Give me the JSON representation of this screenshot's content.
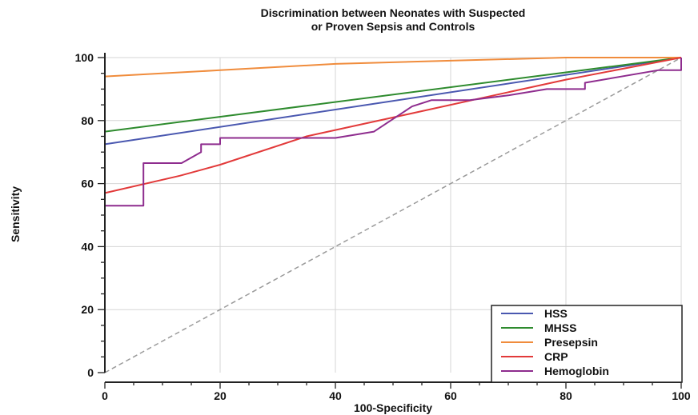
{
  "chart_data": {
    "type": "line",
    "title": "Discrimination between Neonates with Suspected",
    "subtitle": "or Proven Sepsis and Controls",
    "xlabel": "100-Specificity",
    "ylabel": "Sensitivity",
    "xlim": [
      0,
      100
    ],
    "ylim": [
      0,
      100
    ],
    "xticks": [
      "0",
      "20",
      "40",
      "60",
      "80",
      "100"
    ],
    "yticks": [
      "0",
      "20",
      "40",
      "60",
      "80",
      "100"
    ],
    "grid": true,
    "legend": "bottom-right",
    "reference_line": {
      "color": "#9a9a9a",
      "style": "dashed",
      "points": [
        [
          0,
          0
        ],
        [
          100,
          100
        ]
      ]
    },
    "series": [
      {
        "name": "HSS",
        "color": "#4a58b0",
        "points": [
          [
            0,
            0
          ],
          [
            0,
            72.5
          ],
          [
            100,
            100
          ]
        ]
      },
      {
        "name": "MHSS",
        "color": "#2e8b2e",
        "points": [
          [
            0,
            0
          ],
          [
            0,
            76.5
          ],
          [
            100,
            100
          ]
        ]
      },
      {
        "name": "Presepsin",
        "color": "#f08c3c",
        "points": [
          [
            0,
            0
          ],
          [
            0,
            94
          ],
          [
            20,
            96
          ],
          [
            40,
            98
          ],
          [
            60,
            99
          ],
          [
            80,
            100
          ],
          [
            100,
            100
          ]
        ]
      },
      {
        "name": "CRP",
        "color": "#e23a3a",
        "points": [
          [
            0,
            0
          ],
          [
            0,
            57
          ],
          [
            13,
            62.5
          ],
          [
            20,
            66
          ],
          [
            35,
            75
          ],
          [
            50,
            81
          ],
          [
            65,
            87
          ],
          [
            80,
            93
          ],
          [
            100,
            100
          ]
        ]
      },
      {
        "name": "Hemoglobin",
        "color": "#8e2c8e",
        "points": [
          [
            0,
            0
          ],
          [
            0,
            53
          ],
          [
            6.7,
            53
          ],
          [
            6.7,
            66.5
          ],
          [
            13.3,
            66.5
          ],
          [
            16.7,
            70
          ],
          [
            16.7,
            72.5
          ],
          [
            20,
            72.5
          ],
          [
            20,
            74.5
          ],
          [
            40,
            74.5
          ],
          [
            46.7,
            76.5
          ],
          [
            50,
            80.5
          ],
          [
            53.3,
            84.5
          ],
          [
            56.7,
            86.5
          ],
          [
            63.3,
            86.5
          ],
          [
            70,
            88
          ],
          [
            76.7,
            90
          ],
          [
            83.3,
            90
          ],
          [
            83.3,
            92
          ],
          [
            96,
            96
          ],
          [
            100,
            96
          ],
          [
            100,
            100
          ]
        ]
      }
    ]
  }
}
